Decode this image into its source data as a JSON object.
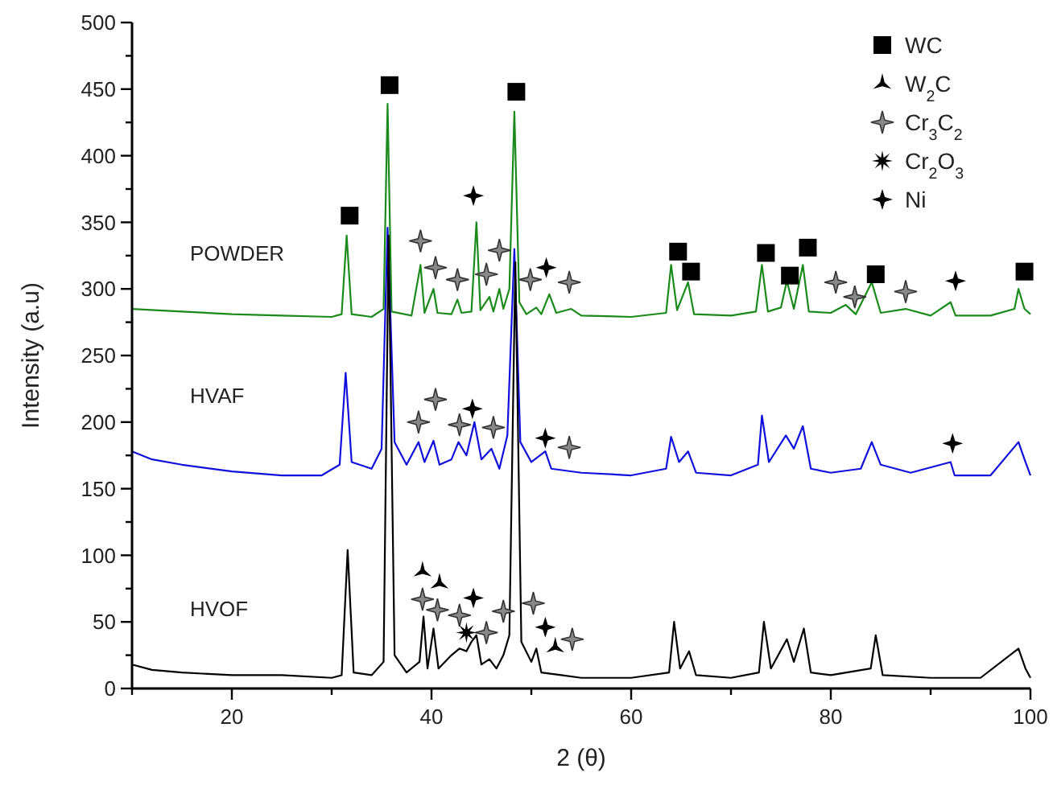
{
  "chart_data": {
    "type": "line",
    "xlabel": "2 (θ)",
    "ylabel": "Intensity (a.u)",
    "xlim": [
      10,
      100
    ],
    "ylim": [
      0,
      500
    ],
    "xticks": [
      {
        "value": 10,
        "label": null
      },
      20,
      {
        "value": 30,
        "label": null
      },
      40,
      {
        "value": 50,
        "label": null
      },
      60,
      {
        "value": 70,
        "label": null
      },
      80,
      {
        "value": 90,
        "label": null
      },
      100
    ],
    "yticks": [
      0,
      {
        "value": 25,
        "label": null
      },
      50,
      {
        "value": 75,
        "label": null
      },
      100,
      {
        "value": 125,
        "label": null
      },
      150,
      {
        "value": 175,
        "label": null
      },
      200,
      {
        "value": 225,
        "label": null
      },
      250,
      {
        "value": 275,
        "label": null
      },
      300,
      {
        "value": 325,
        "label": null
      },
      350,
      {
        "value": 375,
        "label": null
      },
      400,
      {
        "value": 425,
        "label": null
      },
      450,
      {
        "value": 475,
        "label": null
      },
      500
    ],
    "grid": false,
    "legend": "top right",
    "series": [
      {
        "name": "POWDER",
        "color": "#1a8a1a",
        "x": [
          10,
          15,
          20,
          25,
          30,
          31,
          31.5,
          32,
          34,
          35.2,
          35.6,
          36,
          38,
          38.9,
          39.3,
          40.2,
          40.6,
          42,
          42.6,
          43,
          44,
          44.5,
          44.9,
          45.8,
          46.2,
          46.8,
          47.2,
          47.8,
          48.3,
          48.8,
          49.5,
          50.5,
          51,
          51.8,
          52.5,
          54,
          55,
          60,
          63.5,
          64,
          64.6,
          65.7,
          66.3,
          70,
          72.5,
          73.1,
          73.7,
          75,
          75.6,
          76.3,
          77.2,
          77.8,
          80,
          81.5,
          82.5,
          84.1,
          85,
          87.5,
          90,
          92,
          92.5,
          96,
          98.4,
          98.8,
          99.4,
          100
        ],
        "values": [
          285,
          283,
          281,
          280,
          279,
          281,
          340,
          281,
          279,
          285,
          439,
          283,
          280,
          318,
          282,
          300,
          282,
          281,
          292,
          282,
          283,
          350,
          284,
          294,
          283,
          300,
          285,
          300,
          433,
          290,
          281,
          286,
          281,
          296,
          282,
          285,
          280,
          279,
          282,
          318,
          284,
          305,
          281,
          280,
          283,
          318,
          283,
          286,
          306,
          285,
          318,
          283,
          282,
          288,
          281,
          305,
          282,
          285,
          280,
          290,
          280,
          280,
          285,
          300,
          285,
          281
        ]
      },
      {
        "name": "HVAF",
        "color": "#1010dd",
        "x": [
          10,
          12,
          15,
          20,
          25,
          29,
          30.8,
          31.4,
          32,
          34,
          35,
          35.6,
          36.3,
          37.5,
          38.7,
          39.3,
          40.2,
          40.8,
          42,
          42.7,
          43.5,
          44.3,
          45,
          46,
          46.8,
          47.6,
          48.3,
          48.9,
          50,
          51.4,
          52,
          55,
          60,
          63.5,
          64,
          64.8,
          65.7,
          66.5,
          70,
          72.7,
          73.1,
          73.8,
          75.5,
          76.3,
          77.2,
          78,
          80,
          83,
          84.1,
          85,
          88,
          92,
          92.4,
          96,
          98.8,
          99.5,
          100
        ],
        "values": [
          178,
          172,
          168,
          163,
          160,
          160,
          168,
          237,
          170,
          165,
          180,
          346,
          185,
          168,
          185,
          170,
          186,
          168,
          172,
          185,
          175,
          200,
          172,
          180,
          165,
          190,
          330,
          185,
          170,
          178,
          165,
          162,
          160,
          165,
          189,
          170,
          178,
          162,
          160,
          168,
          205,
          170,
          190,
          180,
          197,
          165,
          162,
          165,
          185,
          168,
          162,
          170,
          160,
          160,
          185,
          170,
          160
        ]
      },
      {
        "name": "HVOF",
        "color": "#000000",
        "x": [
          10,
          12,
          15,
          20,
          25,
          30,
          31,
          31.6,
          32.2,
          34,
          35.2,
          35.7,
          36.3,
          37.5,
          38.8,
          39.2,
          39.6,
          40.2,
          40.7,
          42,
          42.8,
          43.5,
          44,
          44.5,
          45,
          45.8,
          46.5,
          47.2,
          47.8,
          48.4,
          49,
          50,
          50.5,
          51,
          53,
          55,
          60,
          63.8,
          64.3,
          64.9,
          65.8,
          66.5,
          70,
          72.8,
          73.3,
          74,
          75.6,
          76.3,
          77.3,
          78,
          80,
          84,
          84.5,
          85.2,
          90,
          95,
          98.8,
          99.5,
          100
        ],
        "values": [
          18,
          14,
          12,
          10,
          10,
          8,
          10,
          104,
          12,
          10,
          20,
          340,
          25,
          12,
          20,
          54,
          15,
          45,
          15,
          25,
          30,
          28,
          35,
          40,
          18,
          22,
          15,
          25,
          40,
          320,
          35,
          20,
          30,
          12,
          10,
          8,
          8,
          12,
          50,
          15,
          28,
          10,
          8,
          12,
          50,
          15,
          37,
          20,
          45,
          12,
          10,
          15,
          40,
          10,
          8,
          8,
          30,
          15,
          8
        ]
      },
      {
        "name": "WC",
        "type": "scatter",
        "marker": "square",
        "color": "#000000",
        "x": [
          31.8,
          35.8,
          48.5,
          64.7,
          66.0,
          73.5,
          75.9,
          77.7,
          84.5,
          99.4
        ],
        "values": [
          355,
          453,
          448,
          328,
          313,
          327,
          310,
          331,
          311,
          313
        ]
      },
      {
        "name": "W$_{2}$C",
        "type": "scatter",
        "marker": "triangle",
        "color": "#000000",
        "x": [
          39.1,
          40.8,
          52.4
        ],
        "values": [
          88,
          79,
          31
        ]
      },
      {
        "name": "Cr$_{3}$C$_{2}$",
        "type": "scatter",
        "marker": "star",
        "color": "#888888",
        "x": [
          38.9,
          40.4,
          42.6,
          45.5,
          46.8,
          49.9,
          53.8,
          80.5,
          82.4,
          87.5,
          38.7,
          40.4,
          42.8,
          46.2,
          53.8,
          39.1,
          40.6,
          42.8,
          45.5,
          47.2,
          50.2,
          54.1
        ],
        "values": [
          336,
          316,
          307,
          311,
          329,
          307,
          305,
          305,
          294,
          298,
          200,
          217,
          198,
          196,
          181,
          67,
          59,
          55,
          42,
          58,
          64,
          37
        ]
      },
      {
        "name": "Cr$_{2}$O$_{3}$",
        "type": "scatter",
        "marker": "cross",
        "color": "#000000",
        "x": [
          43.5
        ],
        "values": [
          42
        ]
      },
      {
        "name": "Ni",
        "type": "scatter",
        "marker": "diamond",
        "color": "#000000",
        "x": [
          44.2,
          51.5,
          92.5,
          44.1,
          51.4,
          92.2,
          44.2,
          51.4
        ],
        "values": [
          370,
          316,
          306,
          210,
          188,
          184,
          68,
          46
        ]
      }
    ]
  }
}
